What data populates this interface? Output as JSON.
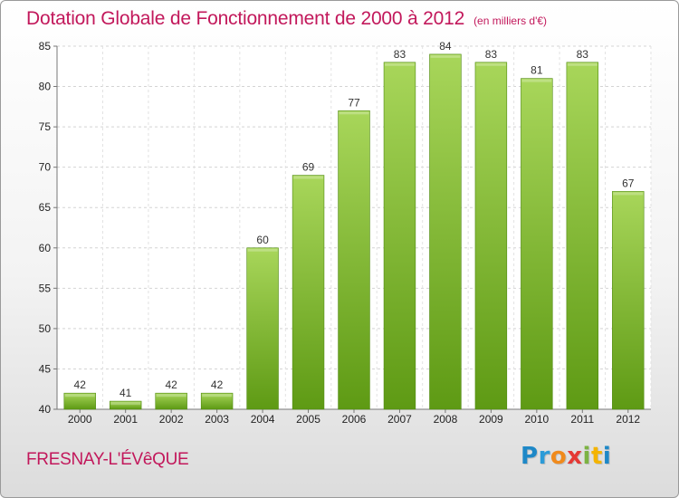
{
  "title": "Dotation Globale de Fonctionnement de 2000 à 2012",
  "unit": "(en milliers d'€)",
  "town": "FRESNAY-L'ÉVêQUE",
  "logo": {
    "letters": [
      "P",
      "r",
      "o",
      "x",
      "i",
      "t",
      "i"
    ],
    "colors": [
      "#1e88c7",
      "#2b9bd8",
      "#f08a1c",
      "#e53935",
      "#7cb342",
      "#f4b400",
      "#1e88c7"
    ]
  },
  "colors": {
    "bar_light": "#a8d65a",
    "bar_dark": "#5e9a14",
    "title": "#c2185b"
  },
  "chart_data": {
    "type": "bar",
    "categories": [
      "2000",
      "2001",
      "2002",
      "2003",
      "2004",
      "2005",
      "2006",
      "2007",
      "2008",
      "2009",
      "2010",
      "2011",
      "2012"
    ],
    "values": [
      42,
      41,
      42,
      42,
      60,
      69,
      77,
      83,
      84,
      83,
      81,
      83,
      67
    ],
    "ylim": [
      40,
      85
    ],
    "yticks": [
      40,
      45,
      50,
      55,
      60,
      65,
      70,
      75,
      80,
      85
    ],
    "grid": true
  }
}
